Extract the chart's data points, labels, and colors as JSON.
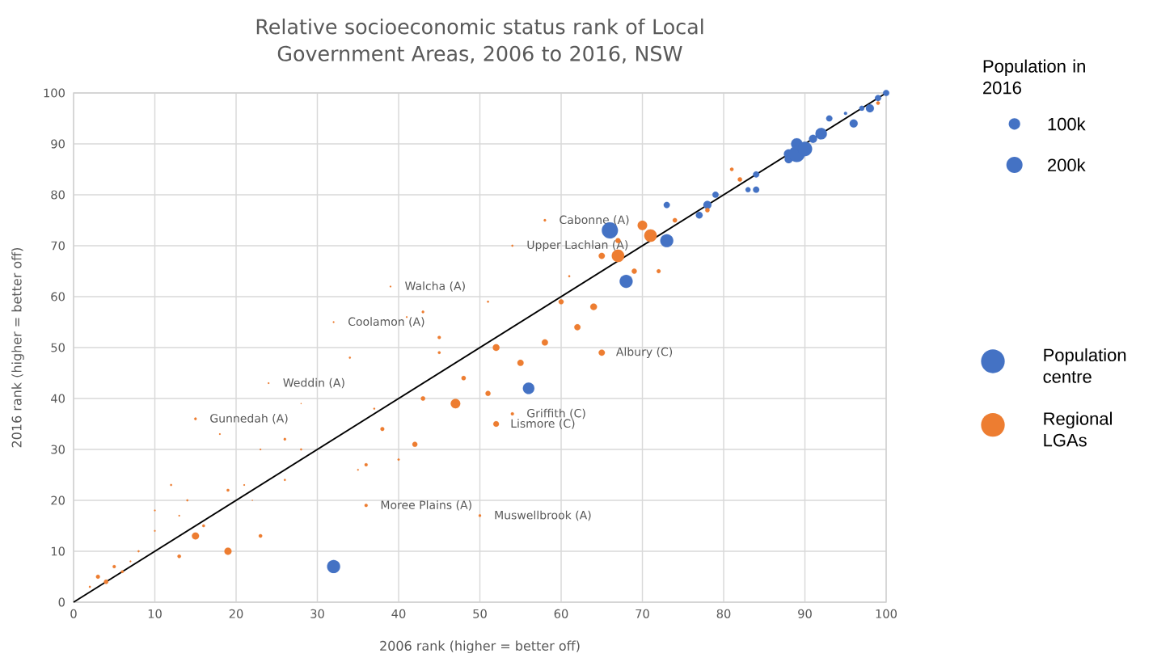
{
  "chart_data": {
    "type": "bubble",
    "title": "Relative socioeconomic status rank of Local Government Areas, 2006 to 2016, NSW",
    "xlabel": "2006 rank (higher = better off)",
    "ylabel": "2016 rank (higher = better off)",
    "legend_title": "Population in 2016",
    "size_legend": [
      {
        "value": 100,
        "label": "100k"
      },
      {
        "value": 200,
        "label": "200k"
      }
    ],
    "xlim": [
      0,
      100
    ],
    "ylim": [
      0,
      100
    ],
    "xticks": [
      0,
      10,
      20,
      30,
      40,
      50,
      60,
      70,
      80,
      90,
      100
    ],
    "yticks": [
      0,
      10,
      20,
      30,
      40,
      50,
      60,
      70,
      80,
      90,
      100
    ],
    "grid": true,
    "legend": "right",
    "series": [
      {
        "name": "Population centre",
        "color": "#4472c4",
        "x": [
          66,
          73,
          68,
          56,
          32,
          73,
          77,
          78,
          79,
          83,
          84,
          84,
          88,
          88,
          89,
          89,
          90,
          91,
          92,
          93,
          95,
          96,
          98,
          97,
          99,
          100
        ],
        "values": [
          73,
          71,
          63,
          42,
          7,
          78,
          76,
          78,
          80,
          81,
          81,
          84,
          88,
          87,
          90,
          88,
          89,
          91,
          92,
          95,
          96,
          94,
          97,
          97,
          99,
          100
        ],
        "sizes": [
          200,
          130,
          130,
          100,
          130,
          30,
          35,
          50,
          30,
          20,
          30,
          30,
          70,
          50,
          100,
          200,
          160,
          50,
          100,
          30,
          8,
          50,
          50,
          20,
          30,
          30
        ]
      },
      {
        "name": "Regional LGAs",
        "color": "#ed7d31",
        "x": [
          58,
          54,
          70,
          71,
          67,
          67,
          65,
          69,
          72,
          74,
          81,
          82,
          78,
          99,
          61,
          51,
          60,
          64,
          62,
          58,
          52,
          39,
          32,
          43,
          41,
          45,
          45,
          48,
          51,
          47,
          43,
          34,
          37,
          38,
          42,
          40,
          36,
          35,
          36,
          50,
          52,
          54,
          65,
          55,
          24,
          28,
          15,
          18,
          26,
          23,
          28,
          26,
          12,
          19,
          21,
          14,
          22,
          10,
          13,
          16,
          10,
          15,
          23,
          19,
          13,
          8,
          7,
          5,
          6,
          3,
          4,
          2
        ],
        "values": [
          75,
          70,
          74,
          72,
          71,
          68,
          68,
          65,
          65,
          75,
          85,
          83,
          77,
          98,
          64,
          59,
          59,
          58,
          54,
          51,
          50,
          62,
          55,
          57,
          56,
          52,
          49,
          44,
          41,
          39,
          40,
          48,
          38,
          34,
          31,
          28,
          27,
          26,
          19,
          17,
          35,
          37,
          49,
          47,
          43,
          39,
          36,
          33,
          32,
          30,
          30,
          24,
          23,
          22,
          23,
          20,
          20,
          18,
          17,
          15,
          14,
          13,
          13,
          10,
          9,
          10,
          8,
          7,
          6,
          5,
          4,
          3
        ],
        "sizes": [
          5,
          3,
          70,
          120,
          20,
          120,
          30,
          20,
          12,
          15,
          10,
          15,
          15,
          10,
          3,
          3,
          20,
          35,
          30,
          30,
          35,
          2,
          2,
          5,
          2,
          8,
          6,
          15,
          20,
          70,
          15,
          3,
          3,
          12,
          20,
          4,
          8,
          2,
          8,
          5,
          25,
          8,
          30,
          30,
          2,
          1,
          5,
          2,
          5,
          2,
          3,
          3,
          3,
          6,
          2,
          3,
          1,
          2,
          2,
          6,
          2,
          40,
          10,
          40,
          10,
          3,
          2,
          8,
          6,
          12,
          15,
          3
        ]
      },
      {
        "type": "line",
        "marker": "none",
        "color": "#000000",
        "x": [
          0,
          100
        ],
        "values": [
          0,
          100
        ]
      }
    ],
    "annotations": [
      {
        "text": "Cabonne (A)",
        "x": 58,
        "y": 75
      },
      {
        "text": "Upper Lachlan (A)",
        "x": 54,
        "y": 70
      },
      {
        "text": "Walcha (A)",
        "x": 39,
        "y": 62
      },
      {
        "text": "Coolamon (A)",
        "x": 32,
        "y": 55
      },
      {
        "text": "Albury (C)",
        "x": 65,
        "y": 49
      },
      {
        "text": "Weddin (A)",
        "x": 24,
        "y": 43
      },
      {
        "text": "Gunnedah (A)",
        "x": 15,
        "y": 36
      },
      {
        "text": "Griffith (C)",
        "x": 54,
        "y": 37
      },
      {
        "text": "Lismore (C)",
        "x": 52,
        "y": 35
      },
      {
        "text": "Moree Plains (A)",
        "x": 36,
        "y": 19
      },
      {
        "text": "Muswellbrook (A)",
        "x": 50,
        "y": 17
      }
    ]
  }
}
